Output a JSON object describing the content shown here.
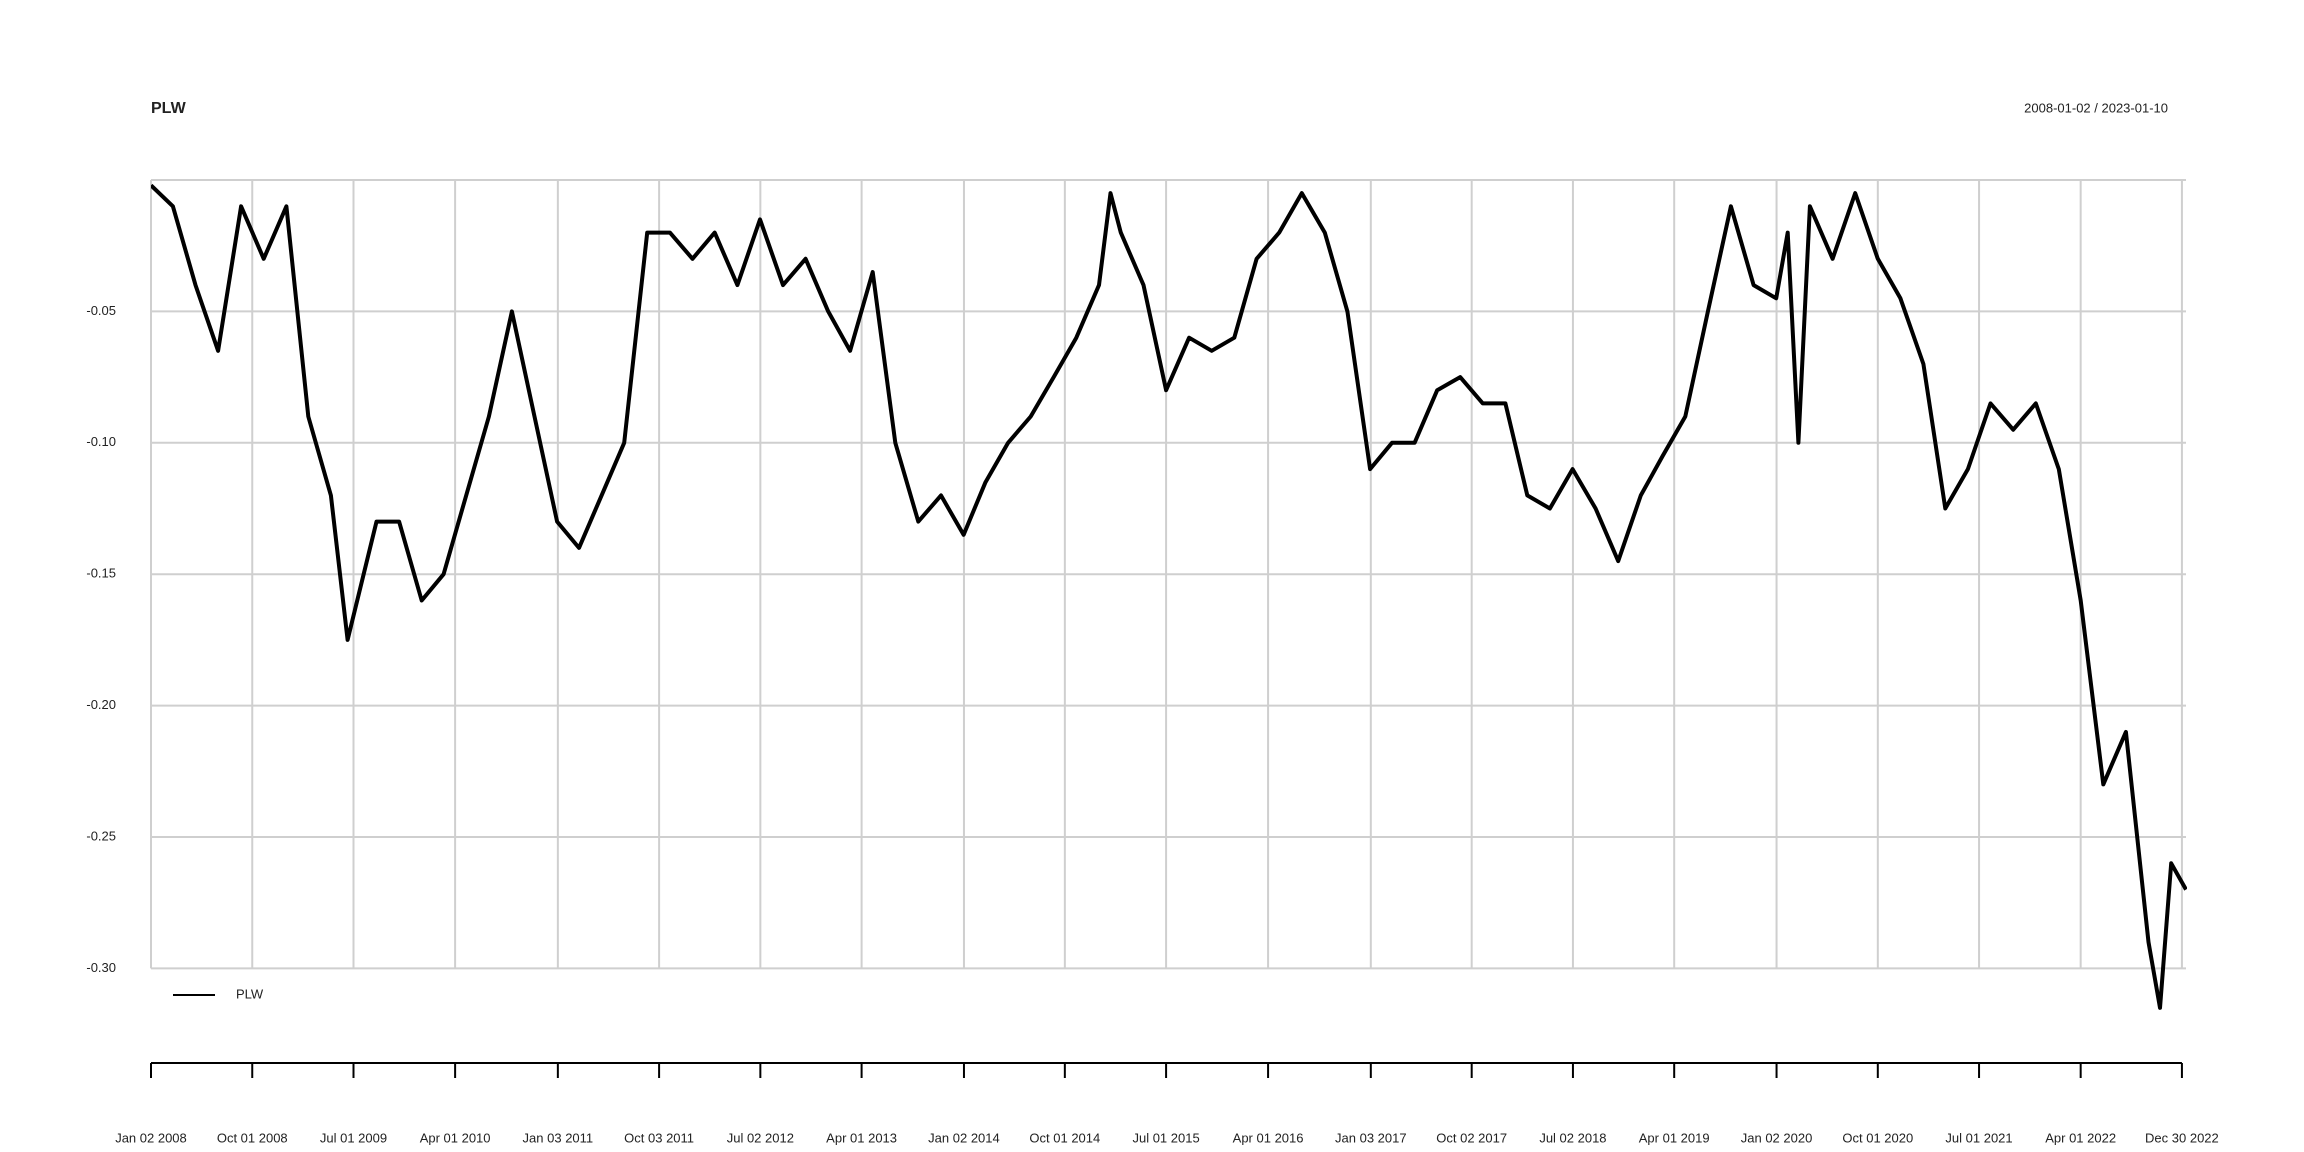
{
  "chart_data": {
    "type": "line",
    "title": "PLW",
    "subtitle": "2008-01-02 / 2023-01-10",
    "x": [
      "2008-01-02",
      "2008-03-01",
      "2008-05-01",
      "2008-07-01",
      "2008-09-01",
      "2008-11-01",
      "2009-01-01",
      "2009-03-01",
      "2009-05-01",
      "2009-06-15",
      "2009-09-01",
      "2009-11-01",
      "2010-01-01",
      "2010-03-01",
      "2010-05-01",
      "2010-07-01",
      "2010-09-01",
      "2010-11-01",
      "2011-01-01",
      "2011-03-01",
      "2011-05-01",
      "2011-07-01",
      "2011-09-01",
      "2011-11-01",
      "2012-01-01",
      "2012-03-01",
      "2012-05-01",
      "2012-07-01",
      "2012-09-01",
      "2012-11-01",
      "2013-01-01",
      "2013-03-01",
      "2013-05-01",
      "2013-07-01",
      "2013-09-01",
      "2013-11-01",
      "2014-01-01",
      "2014-03-01",
      "2014-05-01",
      "2014-07-01",
      "2014-09-01",
      "2014-11-01",
      "2015-01-01",
      "2015-02-01",
      "2015-03-01",
      "2015-05-01",
      "2015-07-01",
      "2015-09-01",
      "2015-11-01",
      "2016-01-01",
      "2016-03-01",
      "2016-05-01",
      "2016-07-01",
      "2016-09-01",
      "2016-11-01",
      "2017-01-01",
      "2017-03-01",
      "2017-05-01",
      "2017-07-01",
      "2017-09-01",
      "2017-11-01",
      "2018-01-01",
      "2018-03-01",
      "2018-05-01",
      "2018-07-01",
      "2018-09-01",
      "2018-11-01",
      "2019-01-01",
      "2019-03-01",
      "2019-05-01",
      "2019-07-01",
      "2019-09-01",
      "2019-11-01",
      "2020-01-01",
      "2020-02-01",
      "2020-03-01",
      "2020-04-01",
      "2020-06-01",
      "2020-08-01",
      "2020-10-01",
      "2020-12-01",
      "2021-02-01",
      "2021-04-01",
      "2021-06-01",
      "2021-08-01",
      "2021-10-01",
      "2021-12-01",
      "2022-02-01",
      "2022-04-01",
      "2022-06-01",
      "2022-08-01",
      "2022-10-01",
      "2022-11-01",
      "2022-12-01",
      "2023-01-10"
    ],
    "series": [
      {
        "name": "PLW",
        "color": "#000000",
        "values": [
          -0.002,
          -0.01,
          -0.04,
          -0.065,
          -0.01,
          -0.03,
          -0.01,
          -0.09,
          -0.12,
          -0.175,
          -0.13,
          -0.13,
          -0.16,
          -0.15,
          -0.12,
          -0.09,
          -0.05,
          -0.09,
          -0.13,
          -0.14,
          -0.12,
          -0.1,
          -0.02,
          -0.02,
          -0.03,
          -0.02,
          -0.04,
          -0.015,
          -0.04,
          -0.03,
          -0.05,
          -0.065,
          -0.035,
          -0.1,
          -0.13,
          -0.12,
          -0.135,
          -0.115,
          -0.1,
          -0.09,
          -0.075,
          -0.06,
          -0.04,
          -0.005,
          -0.02,
          -0.04,
          -0.08,
          -0.06,
          -0.065,
          -0.06,
          -0.03,
          -0.02,
          -0.005,
          -0.02,
          -0.05,
          -0.11,
          -0.1,
          -0.1,
          -0.08,
          -0.075,
          -0.085,
          -0.085,
          -0.12,
          -0.125,
          -0.11,
          -0.125,
          -0.145,
          -0.12,
          -0.105,
          -0.09,
          -0.05,
          -0.01,
          -0.04,
          -0.045,
          -0.02,
          -0.1,
          -0.01,
          -0.03,
          -0.005,
          -0.03,
          -0.045,
          -0.07,
          -0.125,
          -0.11,
          -0.085,
          -0.095,
          -0.085,
          -0.11,
          -0.16,
          -0.23,
          -0.21,
          -0.29,
          -0.315,
          -0.26,
          -0.27
        ]
      }
    ],
    "xlim": [
      "2008-01-02",
      "2023-01-10"
    ],
    "xticks": [
      {
        "value": "2008-01-02",
        "label": "Jan 02 2008"
      },
      {
        "value": "2008-10-01",
        "label": "Oct 01 2008"
      },
      {
        "value": "2009-07-01",
        "label": "Jul 01 2009"
      },
      {
        "value": "2010-04-01",
        "label": "Apr 01 2010"
      },
      {
        "value": "2011-01-03",
        "label": "Jan 03 2011"
      },
      {
        "value": "2011-10-03",
        "label": "Oct 03 2011"
      },
      {
        "value": "2012-07-02",
        "label": "Jul 02 2012"
      },
      {
        "value": "2013-04-01",
        "label": "Apr 01 2013"
      },
      {
        "value": "2014-01-02",
        "label": "Jan 02 2014"
      },
      {
        "value": "2014-10-01",
        "label": "Oct 01 2014"
      },
      {
        "value": "2015-07-01",
        "label": "Jul 01 2015"
      },
      {
        "value": "2016-04-01",
        "label": "Apr 01 2016"
      },
      {
        "value": "2017-01-03",
        "label": "Jan 03 2017"
      },
      {
        "value": "2017-10-02",
        "label": "Oct 02 2017"
      },
      {
        "value": "2018-07-02",
        "label": "Jul 02 2018"
      },
      {
        "value": "2019-04-01",
        "label": "Apr 01 2019"
      },
      {
        "value": "2020-01-02",
        "label": "Jan 02 2020"
      },
      {
        "value": "2020-10-01",
        "label": "Oct 01 2020"
      },
      {
        "value": "2021-07-01",
        "label": "Jul 01 2021"
      },
      {
        "value": "2022-04-01",
        "label": "Apr 01 2022"
      },
      {
        "value": "2022-12-30",
        "label": "Dec 30 2022"
      }
    ],
    "ylim": [
      -0.336,
      0
    ],
    "yticks": [
      {
        "value": -0.05,
        "label": "-0.05"
      },
      {
        "value": -0.1,
        "label": "-0.10"
      },
      {
        "value": -0.15,
        "label": "-0.15"
      },
      {
        "value": -0.2,
        "label": "-0.20"
      },
      {
        "value": -0.25,
        "label": "-0.25"
      },
      {
        "value": -0.3,
        "label": "-0.30"
      }
    ],
    "grid": true,
    "legend": "bottomleft"
  }
}
